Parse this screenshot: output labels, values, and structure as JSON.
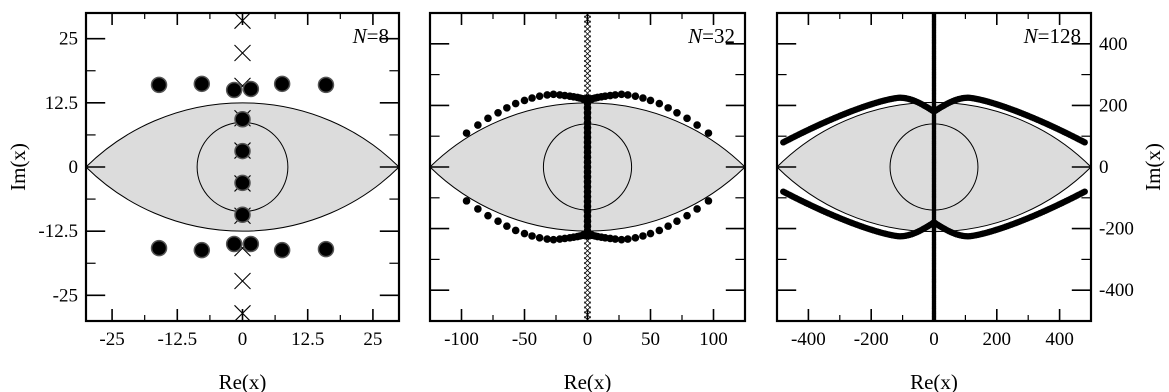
{
  "chart_data": [
    {
      "type": "scatter",
      "N": "8",
      "xlabel": "Re(x)",
      "ylabel": "Im(x)",
      "xlim": [
        -30,
        30
      ],
      "ylim": [
        -30,
        30
      ],
      "xticks": [
        -25,
        -12.5,
        0,
        12.5,
        25
      ],
      "xtick_labels": [
        "-25",
        "-12.5",
        "0",
        "12.5",
        "25"
      ],
      "yticks": [
        -25,
        -12.5,
        0,
        12.5,
        25
      ],
      "ytick_labels": [
        "-25",
        "-12.5",
        "0",
        "12.5",
        "25"
      ],
      "region_halfwidth": 30,
      "region_height": 12.5,
      "circle_radius": 8.7,
      "dots": [
        [
          -16,
          16
        ],
        [
          -7.8,
          16.2
        ],
        [
          -1.6,
          15
        ],
        [
          1.6,
          15.2
        ],
        [
          7.6,
          16.2
        ],
        [
          16,
          16
        ],
        [
          0,
          9.3
        ],
        [
          0,
          3.1
        ],
        [
          0,
          -3.1
        ],
        [
          0,
          -9.3
        ],
        [
          -16,
          -15.8
        ],
        [
          -7.8,
          -16.2
        ],
        [
          -1.6,
          -15
        ],
        [
          1.6,
          -15
        ],
        [
          7.6,
          -16.2
        ],
        [
          16,
          -16
        ]
      ],
      "crosses": [
        [
          0,
          28.5
        ],
        [
          0,
          22.2
        ],
        [
          0,
          15.8
        ],
        [
          0,
          9.5
        ],
        [
          0,
          3.2
        ],
        [
          0,
          -3.2
        ],
        [
          0,
          -9.5
        ],
        [
          0,
          -15.8
        ],
        [
          0,
          -22.2
        ],
        [
          0,
          -28.5
        ]
      ],
      "dot_radius": 7.5,
      "cross_size": 8
    },
    {
      "type": "scatter",
      "N": "32",
      "xlabel": "Re(x)",
      "ylabel": "",
      "xlim": [
        -125,
        125
      ],
      "ylim": [
        -125,
        125
      ],
      "xticks": [
        -100,
        -50,
        0,
        50,
        100
      ],
      "xtick_labels": [
        "-100",
        "-50",
        "0",
        "50",
        "100"
      ],
      "yticks": [
        -100,
        -50,
        0,
        50,
        100
      ],
      "ytick_labels": [],
      "region_halfwidth": 125,
      "region_height": 52,
      "circle_radius": 35,
      "arc_dots": {
        "x": [
          3,
          4,
          6,
          8,
          11,
          14,
          18,
          22,
          27,
          32,
          38,
          44,
          50,
          57,
          64,
          71,
          79,
          87,
          96
        ],
        "ys": [
          52.5,
          51.5,
          60,
          58.5,
          56.5,
          55,
          53,
          51,
          49,
          46.5,
          43.5,
          40,
          36.5,
          33,
          29
        ],
        "yh": [
          55,
          55.5,
          56,
          56.5,
          57,
          57.5,
          58,
          58.5,
          59,
          58.5,
          57.5,
          56,
          54,
          51.5,
          48,
          44,
          39.5,
          34,
          27.5
        ]
      },
      "axis_dots_step": 4,
      "axis_dots_ymax": 56,
      "crosses_step": 4,
      "crosses_ymax": 124,
      "dot_radius": 3.8,
      "cross_size": 3.3
    },
    {
      "type": "scatter",
      "N": "128",
      "xlabel": "Re(x)",
      "ylabel": "Im(x)",
      "xlim": [
        -500,
        500
      ],
      "ylim": [
        -500,
        500
      ],
      "xticks": [
        -400,
        -200,
        0,
        200,
        400
      ],
      "xtick_labels": [
        "-400",
        "-200",
        "0",
        "200",
        "400"
      ],
      "yticks": [
        -400,
        -200,
        0,
        200,
        400
      ],
      "ytick_labels": [
        "-400",
        "-200",
        "0",
        "200",
        "400"
      ],
      "region_halfwidth": 500,
      "region_height": 210,
      "circle_radius": 140,
      "arc_dots": {
        "x_step": 6,
        "x_max": 480,
        "peak": 225,
        "peak_x": 110,
        "end_y": 80
      },
      "dot_radius": 3.2
    }
  ]
}
